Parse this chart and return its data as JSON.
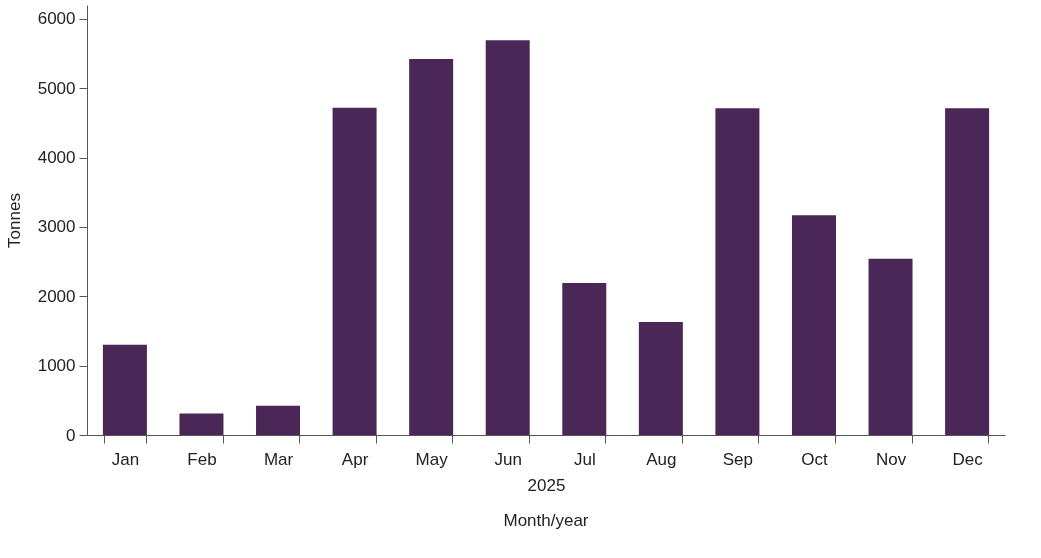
{
  "chart_data": {
    "type": "bar",
    "categories": [
      "Jan",
      "Feb",
      "Mar",
      "Apr",
      "May",
      "Jun",
      "Jul",
      "Aug",
      "Sep",
      "Oct",
      "Nov",
      "Dec"
    ],
    "values": [
      1300,
      310,
      420,
      4720,
      5420,
      5690,
      2190,
      1630,
      4710,
      3170,
      2540,
      4710
    ],
    "color": "#4b2757",
    "ylabel": "Tonnes",
    "xlabel": "Month/year",
    "annotations": [
      "2025"
    ],
    "ylim": [
      0,
      6200
    ],
    "yticks": [
      0,
      1000,
      2000,
      3000,
      4000,
      5000,
      6000
    ],
    "grid": false
  }
}
